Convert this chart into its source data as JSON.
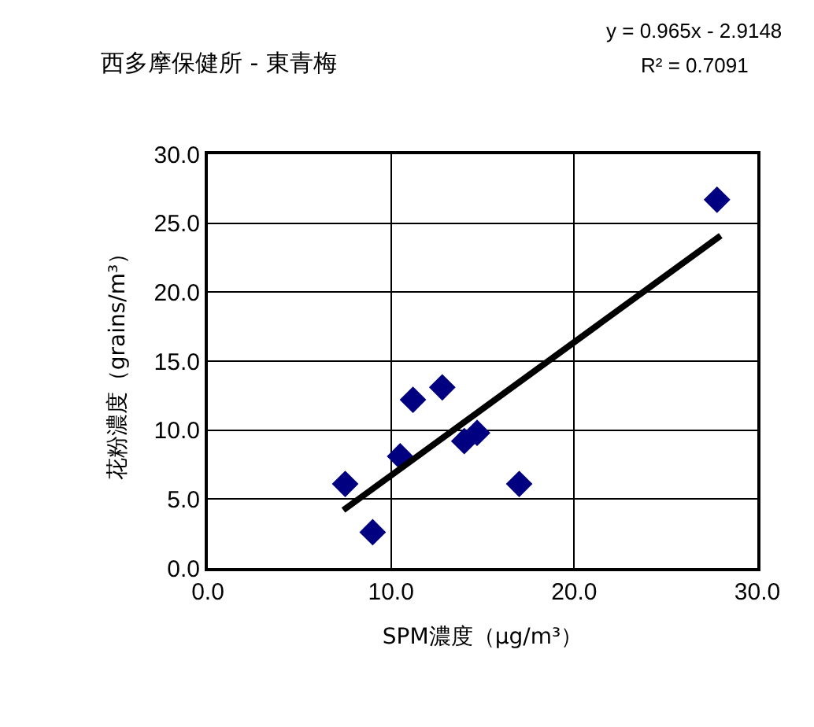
{
  "chart_data": {
    "type": "scatter",
    "title": "西多摩保健所 - 東青梅",
    "xlabel": "SPM濃度（μg/m³）",
    "ylabel": "花粉濃度（grains/m³）",
    "annotations": [
      "y = 0.965x - 2.9148",
      "R² = 0.7091"
    ],
    "series": [
      {
        "color": "#000080",
        "marker": "diamond",
        "x": [
          7.5,
          9.0,
          10.5,
          11.2,
          12.8,
          14.0,
          14.7,
          17.0,
          27.8
        ],
        "values": [
          6.1,
          2.6,
          8.1,
          12.2,
          13.1,
          9.2,
          9.8,
          6.1,
          26.7
        ]
      },
      {
        "type": "line",
        "color": "#000000",
        "marker": "none",
        "x": [
          7.4,
          28.0
        ],
        "values": [
          4.2,
          24.1
        ]
      }
    ],
    "xlim": [
      0,
      30
    ],
    "xticks": [
      {
        "value": 0,
        "label": "0.0"
      },
      {
        "value": 10,
        "label": "10.0"
      },
      {
        "value": 20,
        "label": "20.0"
      },
      {
        "value": 30,
        "label": "30.0"
      }
    ],
    "ylim": [
      0,
      30
    ],
    "yticks": [
      {
        "value": 0,
        "label": "0.0"
      },
      {
        "value": 5,
        "label": "5.0"
      },
      {
        "value": 10,
        "label": "10.0"
      },
      {
        "value": 15,
        "label": "15.0"
      },
      {
        "value": 20,
        "label": "20.0"
      },
      {
        "value": 25,
        "label": "25.0"
      },
      {
        "value": 30,
        "label": "30.0"
      }
    ],
    "grid": true,
    "legend": false
  }
}
